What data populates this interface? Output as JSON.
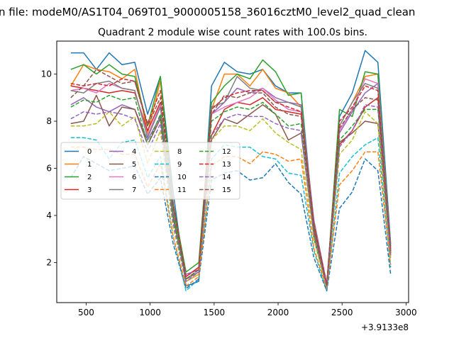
{
  "chart_data": {
    "type": "line",
    "suptitle": "n file: modeM0/AS1T04_069T01_9000005158_36016cztM0_level2_quad_clean",
    "title": "Quadrant 2 module wise count rates with 100.0s bins.",
    "xlabel": "",
    "ylabel": "",
    "x_offset_label": "+3.9133e8",
    "xlim": [
      270,
      3020
    ],
    "ylim": [
      0.3,
      11.4
    ],
    "xticks": [
      500,
      1000,
      1500,
      2000,
      2500,
      3000
    ],
    "yticks": [
      2,
      4,
      6,
      8,
      10
    ],
    "x": [
      380,
      480,
      580,
      680,
      780,
      880,
      980,
      1080,
      1180,
      1280,
      1380,
      1480,
      1580,
      1680,
      1780,
      1880,
      1980,
      2080,
      2180,
      2280,
      2380,
      2480,
      2580,
      2680,
      2780,
      2880
    ],
    "legend": {
      "placement": "center-left",
      "columns": 4
    },
    "series": [
      {
        "name": "0",
        "color": "#1f77b4",
        "dash": "solid",
        "values": [
          10.9,
          10.9,
          10.2,
          10.9,
          10.4,
          10.5,
          8.3,
          9.9,
          5.0,
          1.0,
          1.2,
          9.5,
          10.5,
          10.1,
          10.0,
          10.2,
          9.5,
          9.2,
          9.2,
          3.5,
          1.0,
          8.2,
          9.2,
          11.0,
          10.5,
          2.8
        ]
      },
      {
        "name": "1",
        "color": "#ff7f0e",
        "dash": "solid",
        "values": [
          9.5,
          10.4,
          10.2,
          10.1,
          9.8,
          10.2,
          7.5,
          9.7,
          4.5,
          1.2,
          1.5,
          8.5,
          10.0,
          10.0,
          9.5,
          10.2,
          9.4,
          9.2,
          8.6,
          3.5,
          1.0,
          7.8,
          8.8,
          9.9,
          10.0,
          2.5
        ]
      },
      {
        "name": "2",
        "color": "#2ca02c",
        "dash": "solid",
        "values": [
          10.2,
          10.4,
          10.0,
          10.4,
          10.0,
          9.9,
          7.8,
          9.9,
          4.5,
          1.6,
          2.0,
          8.8,
          9.5,
          10.0,
          9.8,
          10.6,
          10.1,
          9.1,
          9.2,
          3.0,
          1.0,
          8.5,
          8.2,
          10.1,
          10.0,
          2.6
        ]
      },
      {
        "name": "3",
        "color": "#d62728",
        "dash": "solid",
        "values": [
          9.5,
          9.4,
          9.3,
          9.2,
          9.3,
          9.2,
          7.6,
          8.8,
          4.2,
          1.4,
          1.8,
          7.4,
          8.5,
          8.8,
          8.7,
          9.0,
          8.5,
          8.4,
          8.3,
          3.4,
          1.0,
          7.0,
          7.6,
          8.6,
          9.0,
          2.4
        ]
      },
      {
        "name": "4",
        "color": "#9467bd",
        "dash": "solid",
        "values": [
          8.7,
          9.0,
          8.6,
          8.4,
          8.7,
          8.5,
          7.2,
          8.2,
          4.0,
          1.5,
          1.7,
          8.3,
          8.8,
          9.4,
          9.2,
          9.4,
          9.0,
          8.8,
          8.7,
          3.8,
          1.1,
          7.5,
          8.4,
          9.2,
          9.6,
          2.6
        ]
      },
      {
        "name": "5",
        "color": "#8c564b",
        "dash": "solid",
        "values": [
          7.9,
          8.0,
          9.1,
          7.8,
          8.6,
          8.5,
          7.0,
          8.1,
          3.9,
          1.3,
          1.6,
          7.2,
          8.1,
          7.9,
          8.3,
          8.7,
          8.3,
          7.2,
          7.5,
          3.2,
          1.0,
          7.1,
          7.5,
          8.0,
          7.9,
          2.3
        ]
      },
      {
        "name": "6",
        "color": "#e377c2",
        "dash": "solid",
        "values": [
          9.3,
          9.4,
          9.2,
          9.6,
          9.4,
          9.3,
          7.4,
          8.7,
          4.2,
          1.3,
          1.6,
          8.3,
          8.6,
          8.8,
          9.0,
          9.4,
          8.9,
          8.5,
          8.4,
          3.6,
          1.0,
          7.6,
          8.5,
          9.8,
          9.6,
          2.6
        ]
      },
      {
        "name": "7",
        "color": "#7f7f7f",
        "dash": "solid",
        "values": [
          9.3,
          9.2,
          9.6,
          9.7,
          9.4,
          9.3,
          7.3,
          8.6,
          4.1,
          1.3,
          1.6,
          8.6,
          8.8,
          9.9,
          9.4,
          9.3,
          8.8,
          8.8,
          8.6,
          3.7,
          1.0,
          7.8,
          8.8,
          9.6,
          9.4,
          2.7
        ]
      },
      {
        "name": "8",
        "color": "#bcbd22",
        "dash": "dashed",
        "values": [
          7.8,
          7.8,
          7.9,
          8.4,
          7.8,
          8.2,
          6.2,
          7.6,
          3.5,
          1.2,
          1.5,
          7.2,
          7.8,
          7.8,
          7.6,
          8.1,
          7.5,
          7.1,
          6.8,
          3.0,
          0.9,
          6.6,
          7.2,
          8.4,
          7.9,
          2.2
        ]
      },
      {
        "name": "9",
        "color": "#17becf",
        "dash": "dashed",
        "values": [
          7.3,
          7.3,
          7.2,
          6.4,
          7.1,
          7.2,
          5.6,
          6.5,
          3.1,
          0.8,
          1.3,
          6.4,
          7.0,
          6.9,
          6.9,
          6.5,
          6.4,
          5.8,
          5.7,
          2.5,
          0.8,
          5.8,
          6.5,
          7.0,
          7.3,
          1.8
        ]
      },
      {
        "name": "10",
        "color": "#1f77b4",
        "dash": "dashed",
        "values": [
          5.6,
          6.5,
          6.2,
          5.9,
          6.0,
          6.1,
          4.9,
          5.6,
          2.8,
          0.9,
          1.3,
          5.5,
          5.8,
          5.9,
          5.5,
          5.6,
          6.2,
          5.4,
          4.9,
          2.2,
          0.8,
          4.3,
          5.0,
          6.4,
          5.9,
          1.5
        ]
      },
      {
        "name": "11",
        "color": "#ff7f0e",
        "dash": "dashed",
        "values": [
          6.9,
          6.9,
          6.8,
          6.8,
          6.6,
          6.6,
          5.2,
          6.2,
          3.1,
          1.0,
          1.4,
          6.1,
          6.5,
          6.5,
          6.2,
          6.7,
          6.6,
          6.3,
          6.4,
          2.6,
          0.9,
          5.3,
          5.9,
          6.7,
          6.7,
          1.9
        ]
      },
      {
        "name": "12",
        "color": "#2ca02c",
        "dash": "dashed",
        "values": [
          8.6,
          8.9,
          8.8,
          9.1,
          8.9,
          9.0,
          7.0,
          8.3,
          4.0,
          1.3,
          1.7,
          8.0,
          8.4,
          8.6,
          8.5,
          8.8,
          8.3,
          7.8,
          7.9,
          3.3,
          1.0,
          7.2,
          7.8,
          8.5,
          8.5,
          2.4
        ]
      },
      {
        "name": "13",
        "color": "#d62728",
        "dash": "dashed",
        "values": [
          9.6,
          9.5,
          9.6,
          9.5,
          9.8,
          9.7,
          7.9,
          9.3,
          4.5,
          1.4,
          1.8,
          8.5,
          9.0,
          9.2,
          9.3,
          9.3,
          8.8,
          8.6,
          8.4,
          3.6,
          1.1,
          8.0,
          8.6,
          9.5,
          9.3,
          2.5
        ]
      },
      {
        "name": "14",
        "color": "#9467bd",
        "dash": "dashed",
        "values": [
          8.1,
          8.4,
          8.3,
          8.4,
          8.3,
          8.1,
          6.7,
          7.9,
          3.7,
          1.2,
          1.6,
          7.4,
          8.1,
          8.3,
          8.2,
          8.2,
          7.9,
          7.7,
          7.6,
          3.2,
          1.0,
          6.9,
          7.6,
          8.7,
          8.6,
          2.3
        ]
      },
      {
        "name": "15",
        "color": "#8c564b",
        "dash": "dashed",
        "values": [
          9.0,
          9.5,
          10.2,
          9.9,
          9.6,
          9.7,
          7.8,
          9.0,
          4.4,
          1.3,
          1.7,
          8.3,
          9.1,
          9.0,
          9.2,
          9.2,
          8.6,
          8.3,
          8.2,
          3.5,
          1.0,
          7.7,
          8.5,
          9.0,
          8.9,
          2.5
        ]
      }
    ]
  }
}
